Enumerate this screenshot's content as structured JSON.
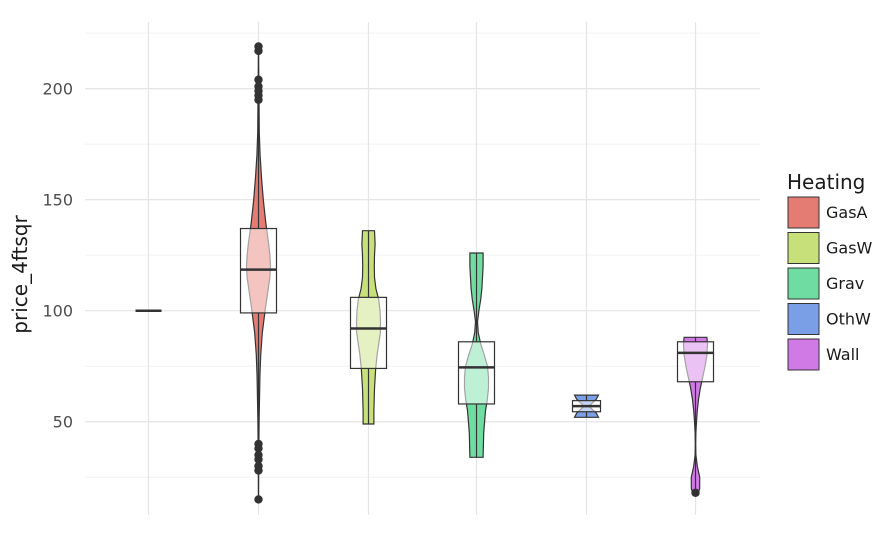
{
  "chart_data": {
    "type": "violin",
    "title": "",
    "xlabel": "",
    "ylabel": "price_4ftsqr",
    "ylim": [
      8,
      230
    ],
    "yticks": [
      50,
      100,
      150,
      200
    ],
    "grid": true,
    "legend": {
      "title": "Heating",
      "position": "right"
    },
    "categories": [
      "",
      "GasA",
      "GasW",
      "Grav",
      "OthW",
      "Wall"
    ],
    "series": [
      {
        "name": "",
        "color": "#8c8c8c",
        "min": 100,
        "q1": 100,
        "median": 100,
        "q3": 100,
        "max": 100,
        "outliers": []
      },
      {
        "name": "GasA",
        "color": "#e57c74",
        "min": 44,
        "q1": 99,
        "median": 118.5,
        "q3": 137,
        "max": 193,
        "outliers": [
          219,
          217,
          204,
          201,
          199,
          197,
          195,
          40,
          38,
          35,
          33,
          30,
          28,
          15
        ],
        "density_y": [
          15,
          30,
          40,
          50,
          60,
          70,
          80,
          90,
          100,
          110,
          115,
          120,
          125,
          130,
          140,
          150,
          160,
          170,
          180,
          190,
          200,
          210,
          219
        ],
        "density_w": [
          0.01,
          0.02,
          0.03,
          0.05,
          0.08,
          0.12,
          0.18,
          0.32,
          0.55,
          0.82,
          0.95,
          1.0,
          0.95,
          0.85,
          0.6,
          0.4,
          0.25,
          0.13,
          0.07,
          0.05,
          0.03,
          0.02,
          0.01
        ]
      },
      {
        "name": "GasW",
        "color": "#c8e07a",
        "min": 49,
        "q1": 74,
        "median": 92,
        "q3": 106,
        "max": 136,
        "outliers": [],
        "density_y": [
          49,
          55,
          65,
          74,
          80,
          85,
          90,
          95,
          100,
          105,
          110,
          115,
          120,
          125,
          130,
          136
        ],
        "density_w": [
          0.45,
          0.45,
          0.5,
          0.6,
          0.72,
          0.85,
          0.98,
          1.0,
          0.96,
          0.85,
          0.62,
          0.5,
          0.48,
          0.5,
          0.55,
          0.5
        ]
      },
      {
        "name": "Grav",
        "color": "#6fdda2",
        "min": 34,
        "q1": 58,
        "median": 74.5,
        "q3": 86,
        "max": 126,
        "outliers": [],
        "density_y": [
          34,
          45,
          55,
          60,
          65,
          70,
          75,
          80,
          85,
          90,
          95,
          100,
          105,
          110,
          115,
          120,
          126
        ],
        "density_w": [
          0.55,
          0.6,
          0.75,
          0.9,
          1.0,
          1.0,
          0.92,
          0.65,
          0.35,
          0.15,
          0.08,
          0.2,
          0.35,
          0.45,
          0.5,
          0.55,
          0.55
        ]
      },
      {
        "name": "OthW",
        "color": "#7a9fe6",
        "min": 52,
        "q1": 54.5,
        "median": 57,
        "q3": 59.5,
        "max": 62,
        "outliers": [],
        "density_y": [
          52,
          54,
          57,
          60,
          62
        ],
        "density_w": [
          1.0,
          0.8,
          0.2,
          0.8,
          1.0
        ]
      },
      {
        "name": "Wall",
        "color": "#d07ae6",
        "min": 18,
        "q1": 68,
        "median": 81,
        "q3": 86,
        "max": 88,
        "outliers": [
          18
        ],
        "density_y": [
          17,
          20,
          25,
          30,
          35,
          40,
          45,
          50,
          55,
          60,
          65,
          70,
          75,
          80,
          85,
          88
        ],
        "density_w": [
          0.2,
          0.35,
          0.35,
          0.15,
          0.03,
          0.02,
          0.03,
          0.08,
          0.15,
          0.25,
          0.4,
          0.6,
          0.8,
          0.95,
          1.0,
          0.95
        ]
      }
    ]
  }
}
